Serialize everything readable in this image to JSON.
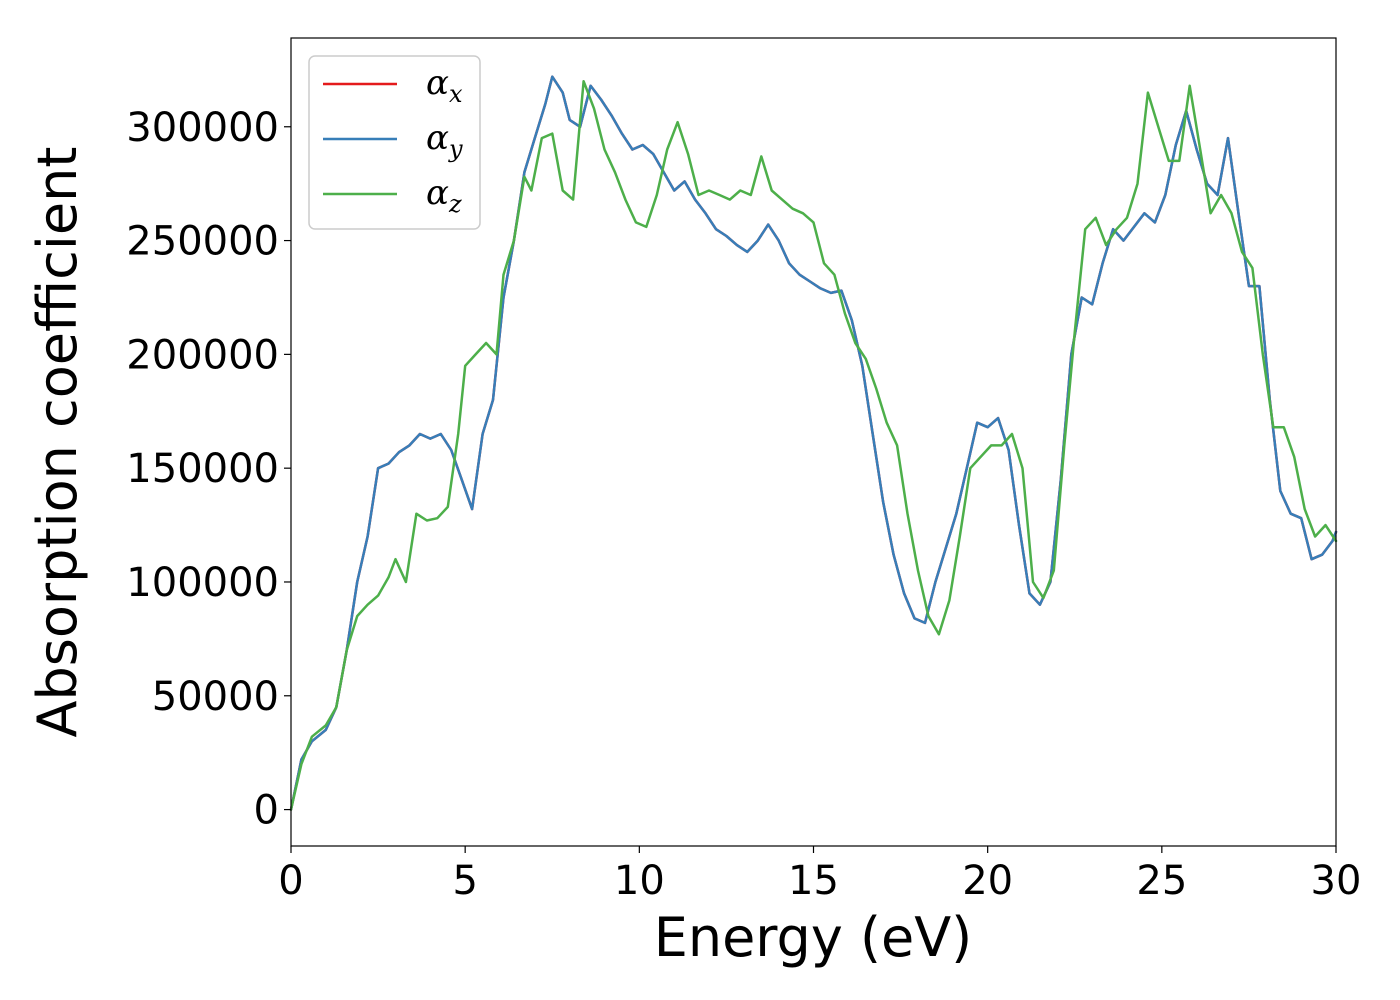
{
  "chart_data": {
    "type": "line",
    "xlabel": "Energy (eV)",
    "ylabel": "Absorption coefficient",
    "xlim": [
      0,
      30
    ],
    "ylim": [
      -16000,
      339000
    ],
    "xticks": [
      "0",
      "5",
      "10",
      "15",
      "20",
      "25",
      "30"
    ],
    "yticks": [
      "0",
      "50000",
      "100000",
      "150000",
      "200000",
      "250000",
      "300000"
    ],
    "grid": false,
    "legend_position": "top-left",
    "series": [
      {
        "name": "α",
        "subscript": "x",
        "color": "#e41a1c",
        "x": [
          0,
          0.3,
          0.6,
          1.0,
          1.3,
          1.6,
          1.9,
          2.2,
          2.5,
          2.8,
          3.1,
          3.4,
          3.7,
          4.0,
          4.3,
          4.6,
          4.9,
          5.2,
          5.5,
          5.8,
          6.1,
          6.4,
          6.7,
          7.0,
          7.3,
          7.5,
          7.8,
          8.0,
          8.3,
          8.6,
          8.9,
          9.2,
          9.5,
          9.8,
          10.1,
          10.4,
          10.7,
          11.0,
          11.3,
          11.6,
          11.9,
          12.2,
          12.5,
          12.8,
          13.1,
          13.4,
          13.7,
          14.0,
          14.3,
          14.6,
          14.9,
          15.2,
          15.5,
          15.8,
          16.1,
          16.4,
          16.7,
          17.0,
          17.3,
          17.6,
          17.9,
          18.2,
          18.5,
          18.8,
          19.1,
          19.4,
          19.7,
          20.0,
          20.3,
          20.6,
          20.9,
          21.2,
          21.5,
          21.8,
          22.1,
          22.4,
          22.7,
          23.0,
          23.3,
          23.6,
          23.9,
          24.2,
          24.5,
          24.8,
          25.1,
          25.4,
          25.7,
          26.0,
          26.3,
          26.6,
          26.9,
          27.2,
          27.5,
          27.8,
          28.1,
          28.4,
          28.7,
          29.0,
          29.3,
          29.6,
          29.9,
          30.0
        ],
        "y": [
          0,
          22000,
          30000,
          35000,
          45000,
          70000,
          100000,
          120000,
          150000,
          152000,
          157000,
          160000,
          165000,
          163000,
          165000,
          158000,
          145000,
          132000,
          165000,
          180000,
          225000,
          250000,
          280000,
          295000,
          310000,
          322000,
          315000,
          303000,
          300000,
          318000,
          312000,
          305000,
          297000,
          290000,
          292000,
          288000,
          280000,
          272000,
          276000,
          268000,
          262000,
          255000,
          252000,
          248000,
          245000,
          250000,
          257000,
          250000,
          240000,
          235000,
          232000,
          229000,
          227000,
          228000,
          215000,
          195000,
          165000,
          135000,
          112000,
          95000,
          84000,
          82000,
          100000,
          115000,
          130000,
          150000,
          170000,
          168000,
          172000,
          158000,
          125000,
          95000,
          90000,
          100000,
          145000,
          200000,
          225000,
          222000,
          240000,
          255000,
          250000,
          256000,
          262000,
          258000,
          270000,
          292000,
          307000,
          290000,
          275000,
          270000,
          295000,
          262000,
          230000,
          230000,
          180000,
          140000,
          130000,
          128000,
          110000,
          112000,
          118000,
          122000
        ]
      },
      {
        "name": "α",
        "subscript": "y",
        "color": "#377eb8",
        "x": [
          0,
          0.3,
          0.6,
          1.0,
          1.3,
          1.6,
          1.9,
          2.2,
          2.5,
          2.8,
          3.1,
          3.4,
          3.7,
          4.0,
          4.3,
          4.6,
          4.9,
          5.2,
          5.5,
          5.8,
          6.1,
          6.4,
          6.7,
          7.0,
          7.3,
          7.5,
          7.8,
          8.0,
          8.3,
          8.6,
          8.9,
          9.2,
          9.5,
          9.8,
          10.1,
          10.4,
          10.7,
          11.0,
          11.3,
          11.6,
          11.9,
          12.2,
          12.5,
          12.8,
          13.1,
          13.4,
          13.7,
          14.0,
          14.3,
          14.6,
          14.9,
          15.2,
          15.5,
          15.8,
          16.1,
          16.4,
          16.7,
          17.0,
          17.3,
          17.6,
          17.9,
          18.2,
          18.5,
          18.8,
          19.1,
          19.4,
          19.7,
          20.0,
          20.3,
          20.6,
          20.9,
          21.2,
          21.5,
          21.8,
          22.1,
          22.4,
          22.7,
          23.0,
          23.3,
          23.6,
          23.9,
          24.2,
          24.5,
          24.8,
          25.1,
          25.4,
          25.7,
          26.0,
          26.3,
          26.6,
          26.9,
          27.2,
          27.5,
          27.8,
          28.1,
          28.4,
          28.7,
          29.0,
          29.3,
          29.6,
          29.9,
          30.0
        ],
        "y": [
          0,
          22000,
          30000,
          35000,
          45000,
          70000,
          100000,
          120000,
          150000,
          152000,
          157000,
          160000,
          165000,
          163000,
          165000,
          158000,
          145000,
          132000,
          165000,
          180000,
          225000,
          250000,
          280000,
          295000,
          310000,
          322000,
          315000,
          303000,
          300000,
          318000,
          312000,
          305000,
          297000,
          290000,
          292000,
          288000,
          280000,
          272000,
          276000,
          268000,
          262000,
          255000,
          252000,
          248000,
          245000,
          250000,
          257000,
          250000,
          240000,
          235000,
          232000,
          229000,
          227000,
          228000,
          215000,
          195000,
          165000,
          135000,
          112000,
          95000,
          84000,
          82000,
          100000,
          115000,
          130000,
          150000,
          170000,
          168000,
          172000,
          158000,
          125000,
          95000,
          90000,
          100000,
          145000,
          200000,
          225000,
          222000,
          240000,
          255000,
          250000,
          256000,
          262000,
          258000,
          270000,
          292000,
          307000,
          290000,
          275000,
          270000,
          295000,
          262000,
          230000,
          230000,
          180000,
          140000,
          130000,
          128000,
          110000,
          112000,
          118000,
          122000
        ]
      },
      {
        "name": "α",
        "subscript": "z",
        "color": "#4daf4a",
        "x": [
          0,
          0.3,
          0.6,
          1.0,
          1.3,
          1.6,
          1.9,
          2.2,
          2.5,
          2.8,
          3.0,
          3.3,
          3.6,
          3.9,
          4.2,
          4.5,
          4.8,
          5.0,
          5.3,
          5.6,
          5.9,
          6.1,
          6.4,
          6.7,
          6.9,
          7.2,
          7.5,
          7.8,
          8.1,
          8.4,
          8.7,
          9.0,
          9.3,
          9.6,
          9.9,
          10.2,
          10.5,
          10.8,
          11.1,
          11.4,
          11.7,
          12.0,
          12.3,
          12.6,
          12.9,
          13.2,
          13.5,
          13.8,
          14.1,
          14.4,
          14.7,
          15.0,
          15.3,
          15.6,
          15.9,
          16.2,
          16.5,
          16.8,
          17.1,
          17.4,
          17.7,
          18.0,
          18.3,
          18.6,
          18.9,
          19.2,
          19.5,
          19.8,
          20.1,
          20.4,
          20.7,
          21.0,
          21.3,
          21.6,
          21.9,
          22.2,
          22.5,
          22.8,
          23.1,
          23.4,
          23.7,
          24.0,
          24.3,
          24.6,
          24.9,
          25.2,
          25.5,
          25.8,
          26.1,
          26.4,
          26.7,
          27.0,
          27.3,
          27.6,
          27.9,
          28.2,
          28.5,
          28.8,
          29.1,
          29.4,
          29.7,
          30.0
        ],
        "y": [
          0,
          20000,
          32000,
          37000,
          45000,
          70000,
          85000,
          90000,
          94000,
          102000,
          110000,
          100000,
          130000,
          127000,
          128000,
          133000,
          165000,
          195000,
          200000,
          205000,
          200000,
          235000,
          250000,
          278000,
          272000,
          295000,
          297000,
          272000,
          268000,
          320000,
          308000,
          290000,
          280000,
          268000,
          258000,
          256000,
          270000,
          290000,
          302000,
          288000,
          270000,
          272000,
          270000,
          268000,
          272000,
          270000,
          287000,
          272000,
          268000,
          264000,
          262000,
          258000,
          240000,
          235000,
          218000,
          205000,
          198000,
          185000,
          170000,
          160000,
          130000,
          105000,
          85000,
          77000,
          92000,
          120000,
          150000,
          155000,
          160000,
          160000,
          165000,
          150000,
          100000,
          93000,
          105000,
          160000,
          210000,
          255000,
          260000,
          248000,
          255000,
          260000,
          275000,
          315000,
          300000,
          285000,
          285000,
          318000,
          290000,
          262000,
          270000,
          262000,
          245000,
          238000,
          200000,
          168000,
          168000,
          155000,
          132000,
          120000,
          125000,
          118000
        ]
      }
    ]
  }
}
